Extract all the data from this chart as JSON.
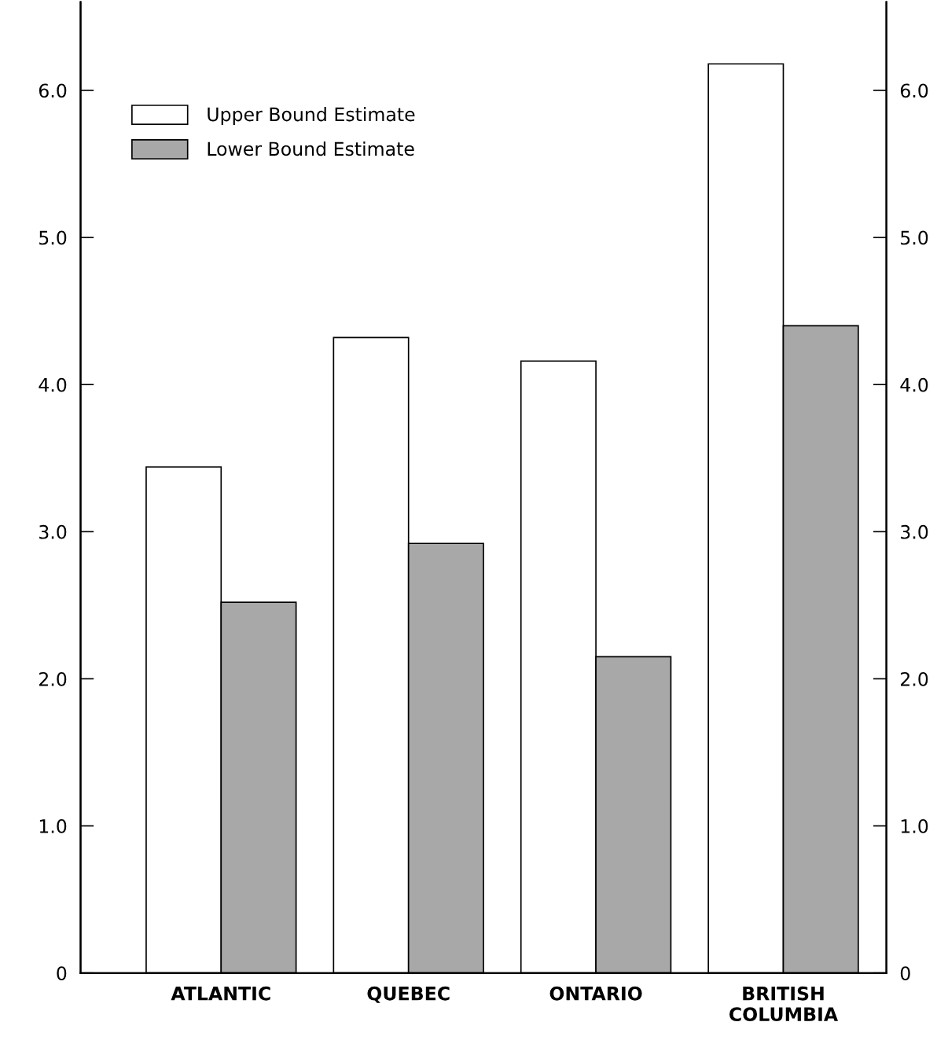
{
  "chart_data": {
    "type": "bar",
    "categories": [
      "ATLANTIC",
      "QUEBEC",
      "ONTARIO",
      "BRITISH\nCOLUMBIA"
    ],
    "series": [
      {
        "name": "Upper Bound Estimate",
        "color": "#ffffff",
        "values": [
          3.44,
          4.32,
          4.16,
          6.18
        ]
      },
      {
        "name": "Lower Bound Estimate",
        "color": "#a8a8a8",
        "values": [
          2.52,
          2.92,
          2.15,
          4.4
        ]
      }
    ],
    "ylim": [
      0,
      6.6
    ],
    "yticks": [
      0,
      {
        "value": 1,
        "label": "1.0"
      },
      {
        "value": 2,
        "label": "2.0"
      },
      {
        "value": 3,
        "label": "3.0"
      },
      {
        "value": 4,
        "label": "4.0"
      },
      {
        "value": 5,
        "label": "5.0"
      },
      {
        "value": 6,
        "label": "6.0"
      }
    ],
    "y2lim": [
      0,
      6.6
    ],
    "y2ticks": [
      0,
      {
        "value": 1,
        "label": "1.0"
      },
      {
        "value": 2,
        "label": "2.0"
      },
      {
        "value": 3,
        "label": "3.0"
      },
      {
        "value": 4,
        "label": "4.0"
      },
      {
        "value": 5,
        "label": "5.0"
      },
      {
        "value": 6,
        "label": "6.0"
      }
    ],
    "grid": false,
    "legend": "top left"
  }
}
